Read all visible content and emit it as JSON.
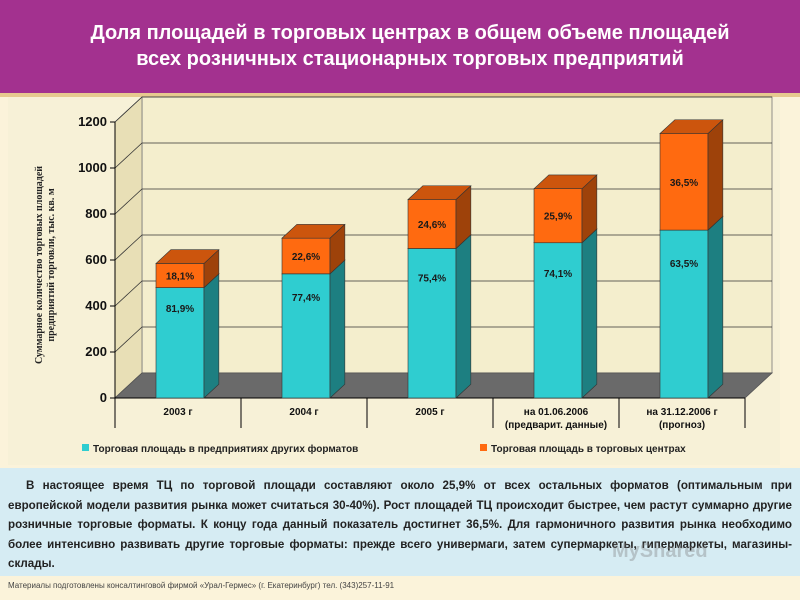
{
  "header": {
    "title_line1": "Доля площадей в торговых центрах в общем объеме площадей",
    "title_line2": "всех розничных стационарных торговых предприятий"
  },
  "chart_data": {
    "type": "bar",
    "stacked": true,
    "categories": [
      "2003 г",
      "2004 г",
      "2005 г",
      "на 01.06.2006",
      "на 31.12.2006 г"
    ],
    "category_sublabels": [
      "",
      "",
      "",
      "(предварит. данные)",
      "(прогноз)"
    ],
    "ylabel": "Суммарное количество торговых площадей предприятий торговли, тыс. кв. м",
    "ylim": [
      0,
      1200
    ],
    "yticks": [
      0,
      200,
      400,
      600,
      800,
      1000,
      1200
    ],
    "series": [
      {
        "name": "Торговая площадь в предприятиях других форматов",
        "color": "#2fcdd0",
        "values": [
          480,
          540,
          650,
          675,
          730
        ],
        "labels": [
          "81,9%",
          "77,4%",
          "75,4%",
          "74,1%",
          "63,5%"
        ]
      },
      {
        "name": "Торговая площадь в торговых центрах",
        "color": "#ff6a10",
        "values": [
          105,
          155,
          213,
          235,
          420
        ],
        "labels": [
          "18,1%",
          "22,6%",
          "24,6%",
          "25,9%",
          "36,5%"
        ]
      }
    ],
    "legend": "bottom"
  },
  "text_block": {
    "body": "В настоящее время ТЦ по торговой площади составляют около 25,9% от всех остальных форматов (оптимальным при европейской модели развития рынка может считаться 30-40%). Рост площадей ТЦ происходит быстрее, чем растут суммарно другие розничные торговые форматы. К концу года данный показатель достигнет 36,5%. Для гармоничного развития рынка необходимо более интенсивно развивать другие торговые форматы: прежде всего универмаги, затем супермаркеты, гипермаркеты, магазины-склады."
  },
  "footer": {
    "source": "Материалы подготовлены консалтинговой фирмой «Урал-Гермес» (г. Екатеринбург) тел. (343)257-11-91"
  },
  "watermark": {
    "text": "MyShared"
  }
}
